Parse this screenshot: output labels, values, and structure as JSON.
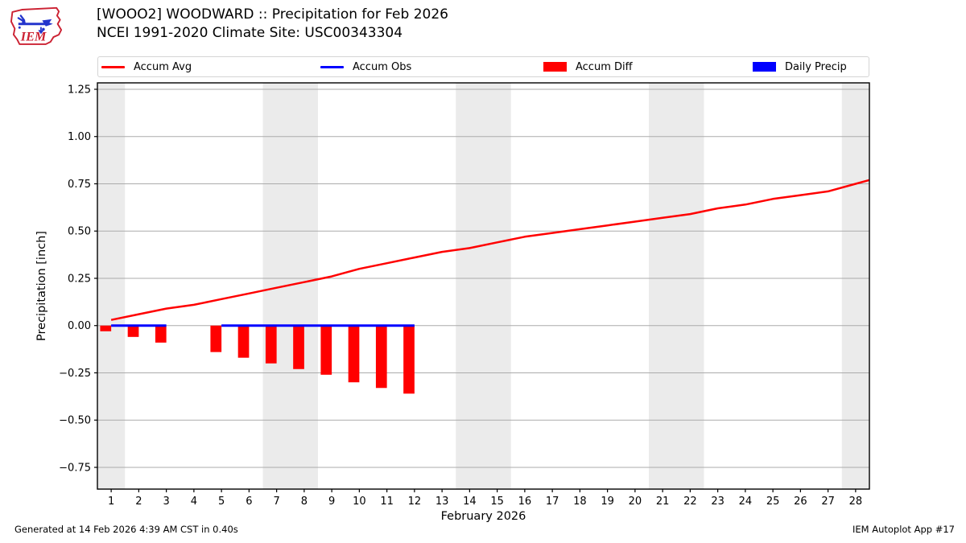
{
  "header": {
    "title_line1": "[WOOO2] WOODWARD :: Precipitation for Feb 2026",
    "title_line2": "NCEI 1991-2020 Climate Site: USC00343304",
    "logo_text": "IEM"
  },
  "legend": {
    "items": [
      {
        "label": "Accum Avg",
        "swatch": "line",
        "color": "#ff0000"
      },
      {
        "label": "Accum Obs",
        "swatch": "line",
        "color": "#0000ff"
      },
      {
        "label": "Accum Diff",
        "swatch": "patch",
        "color": "#ff0000"
      },
      {
        "label": "Daily Precip",
        "swatch": "patch",
        "color": "#0000ff"
      }
    ]
  },
  "footer": {
    "left": "Generated at 14 Feb 2026 4:39 AM CST in 0.40s",
    "right": "IEM Autoplot App #17"
  },
  "chart_data": {
    "type": "line+bar",
    "title": "[WOOO2] WOODWARD :: Precipitation for Feb 2026",
    "subtitle": "NCEI 1991-2020 Climate Site: USC00343304",
    "xlabel": "February 2026",
    "ylabel": "Precipitation [inch]",
    "xlim": [
      0.5,
      28.5
    ],
    "ylim": [
      -0.865,
      1.284
    ],
    "grid": "horizontal-only",
    "grid_color": "#ababab",
    "band_color": "#ebebeb",
    "xticks": [
      1,
      2,
      3,
      4,
      5,
      6,
      7,
      8,
      9,
      10,
      11,
      12,
      13,
      14,
      15,
      16,
      17,
      18,
      19,
      20,
      21,
      22,
      23,
      24,
      25,
      26,
      27,
      28
    ],
    "yticks": [
      {
        "v": 1.25,
        "label": "1.25"
      },
      {
        "v": 1.0,
        "label": "1.00"
      },
      {
        "v": 0.75,
        "label": "0.75"
      },
      {
        "v": 0.5,
        "label": "0.50"
      },
      {
        "v": 0.25,
        "label": "0.25"
      },
      {
        "v": 0.0,
        "label": "0.00"
      },
      {
        "v": -0.25,
        "label": "−0.25"
      },
      {
        "v": -0.5,
        "label": "−0.50"
      },
      {
        "v": -0.75,
        "label": "−0.75"
      }
    ],
    "weekend_bands": [
      [
        0.5,
        1.5
      ],
      [
        6.5,
        8.5
      ],
      [
        13.5,
        15.5
      ],
      [
        20.5,
        22.5
      ],
      [
        27.5,
        28.5
      ]
    ],
    "series": [
      {
        "name": "Accum Avg",
        "type": "line",
        "color": "#ff0000",
        "stroke_width": 2.5,
        "x": [
          1,
          2,
          3,
          4,
          5,
          6,
          7,
          8,
          9,
          10,
          11,
          12,
          13,
          14,
          15,
          16,
          17,
          18,
          19,
          20,
          21,
          22,
          23,
          24,
          25,
          26,
          27,
          28,
          28.5
        ],
        "values": [
          0.03,
          0.06,
          0.09,
          0.11,
          0.14,
          0.17,
          0.2,
          0.23,
          0.26,
          0.3,
          0.33,
          0.36,
          0.39,
          0.41,
          0.44,
          0.47,
          0.49,
          0.51,
          0.53,
          0.55,
          0.57,
          0.59,
          0.62,
          0.64,
          0.67,
          0.69,
          0.71,
          0.75,
          0.77
        ]
      },
      {
        "name": "Accum Obs",
        "type": "line",
        "color": "#0000ff",
        "stroke_width": 3,
        "segments": [
          {
            "x": [
              1,
              2,
              3
            ],
            "values": [
              0,
              0,
              0
            ]
          },
          {
            "x": [
              5,
              6,
              7,
              8,
              9,
              10,
              11,
              12
            ],
            "values": [
              0,
              0,
              0,
              0,
              0,
              0,
              0,
              0
            ]
          }
        ]
      },
      {
        "name": "Accum Diff",
        "type": "bar",
        "color": "#ff0000",
        "bar_width": 0.4,
        "bar_offset": -0.2,
        "x": [
          1,
          2,
          3,
          5,
          6,
          7,
          8,
          9,
          10,
          11,
          12
        ],
        "values": [
          -0.03,
          -0.06,
          -0.09,
          -0.14,
          -0.17,
          -0.2,
          -0.23,
          -0.26,
          -0.3,
          -0.33,
          -0.36
        ]
      },
      {
        "name": "Daily Precip",
        "type": "bar",
        "color": "#0000ff",
        "bar_width": 0.4,
        "bar_offset": 0.2,
        "x": [
          1,
          2,
          3,
          5,
          6,
          7,
          8,
          9,
          10,
          11,
          12
        ],
        "values": [
          0,
          0,
          0,
          0,
          0,
          0,
          0,
          0,
          0,
          0,
          0
        ]
      }
    ]
  }
}
